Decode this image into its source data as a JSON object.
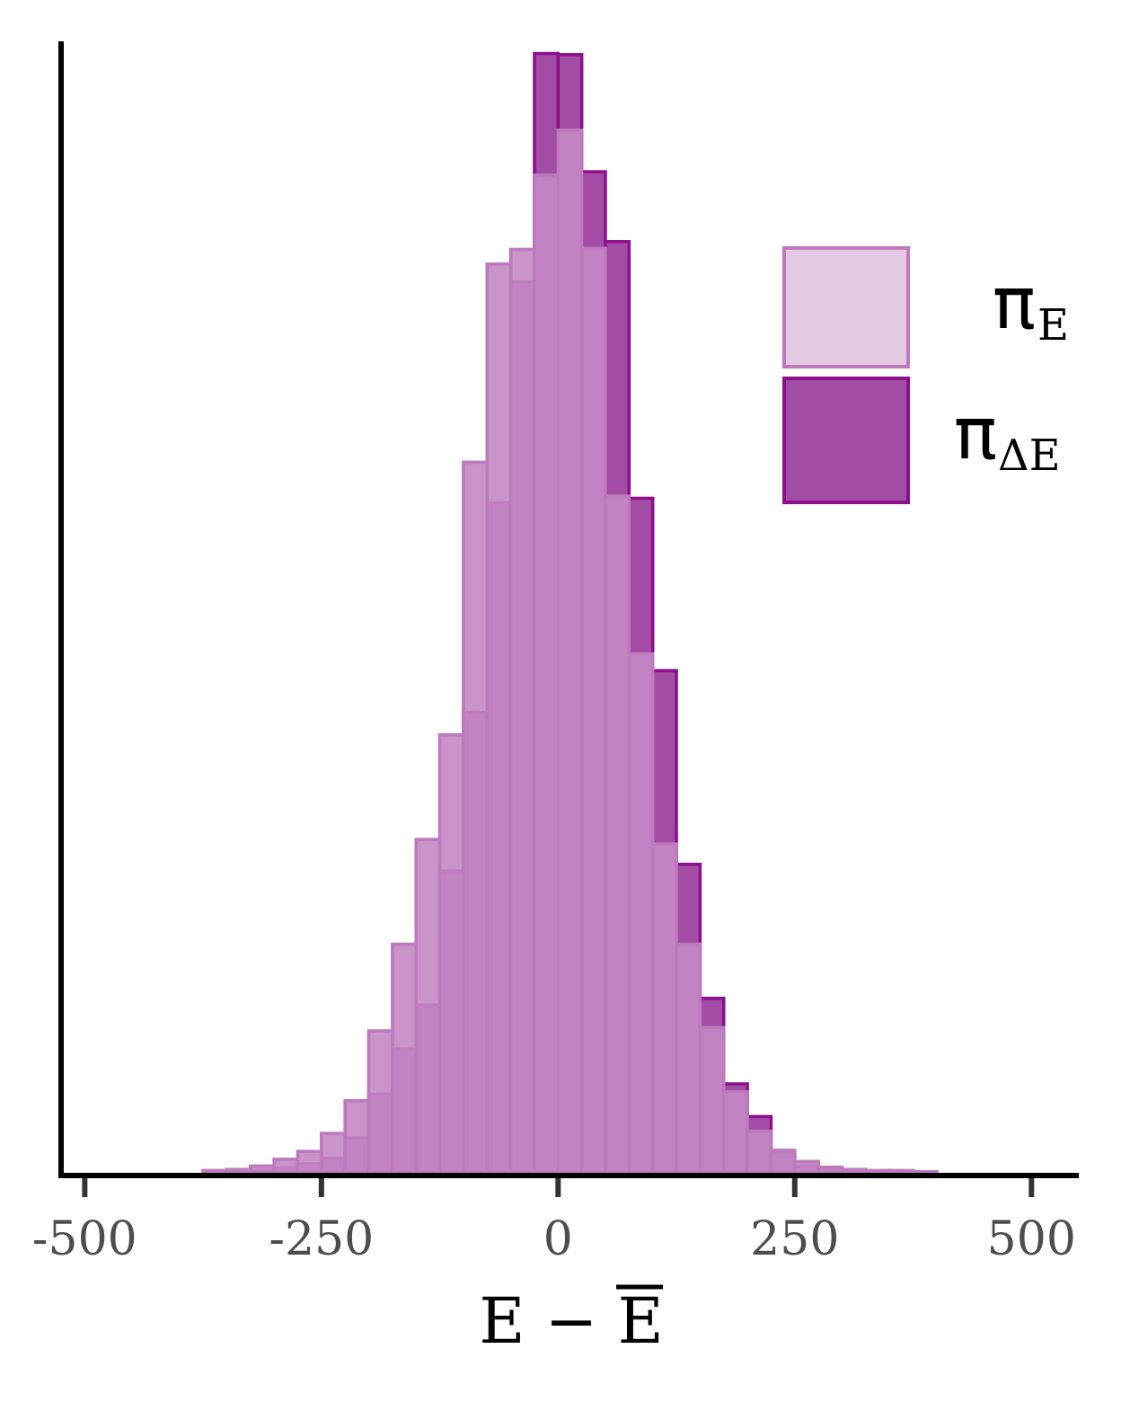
{
  "chart_data": {
    "type": "bar",
    "x_bin_starts": [
      -375,
      -350,
      -325,
      -300,
      -275,
      -250,
      -225,
      -200,
      -175,
      -150,
      -125,
      -100,
      -75,
      -50,
      -25,
      0,
      25,
      50,
      75,
      100,
      125,
      150,
      175,
      200,
      225,
      250,
      275,
      300,
      325,
      350,
      375
    ],
    "bin_width": 25,
    "xlim": [
      -525,
      550
    ],
    "ylim": [
      0,
      100
    ],
    "x_ticks": [
      -500,
      -250,
      0,
      250,
      500
    ],
    "x_tick_labels": [
      "-500",
      "-250",
      "0",
      "250",
      "500"
    ],
    "xlabel": "E − E",
    "xlabel_overline": "E",
    "series": [
      {
        "name": "π",
        "name_sub": "E",
        "fill": "#c589c5",
        "stroke": "#bd7abd",
        "values": [
          0.2,
          0.3,
          0.6,
          1.2,
          1.9,
          3.5,
          6.4,
          12.6,
          20.3,
          29.6,
          38.9,
          63.1,
          80.7,
          82.0,
          88.6,
          92.6,
          82.1,
          60.1,
          46.1,
          29.2,
          20.3,
          12.9,
          7.2,
          3.7,
          2.0,
          1.0,
          0.5,
          0.3,
          0.2,
          0.2,
          0.1
        ]
      },
      {
        "name": "π",
        "name_sub": "ΔE",
        "fill": "#a34ca5",
        "stroke": "#8c0f8c",
        "values": [
          0.1,
          0.2,
          0.2,
          0.4,
          0.8,
          1.3,
          3.1,
          7.0,
          11.0,
          14.9,
          26.8,
          40.9,
          59.5,
          79.1,
          99.4,
          99.3,
          88.9,
          82.7,
          59.9,
          44.6,
          27.4,
          15.5,
          7.9,
          5.0,
          1.8,
          0.6,
          0.4,
          0.2,
          0.1,
          0.1,
          0.1
        ]
      }
    ],
    "legend_placement": "top-right",
    "grid": false
  }
}
